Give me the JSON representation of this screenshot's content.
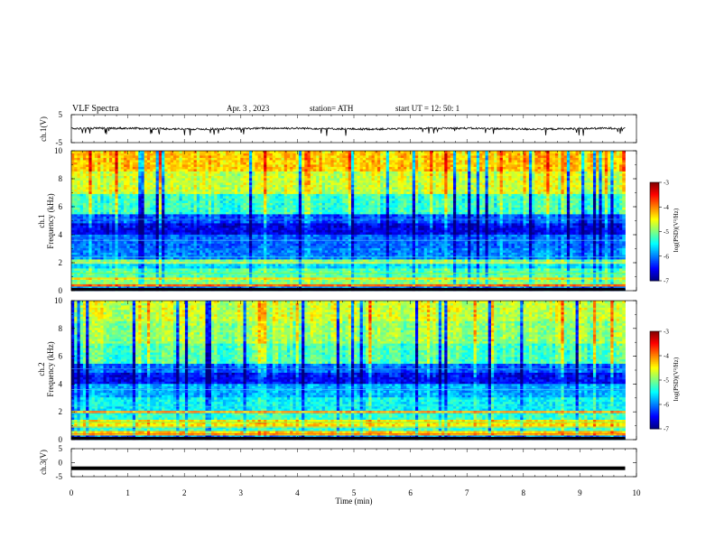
{
  "header": {
    "title": "VLF  Spectra",
    "date": "Apr. 3  , 2023",
    "station": "station= ATH",
    "start": "start  UT  =    12: 50: 1"
  },
  "chart_data": [
    {
      "type": "line",
      "panel": "ch1-waveform",
      "ylabel": "ch.1(V)",
      "ylim": [
        -5,
        5
      ],
      "yticks": [
        "5",
        "-5"
      ],
      "xlim": [
        0,
        10
      ],
      "description_series": "noisy waveform centred near 0 V with spikes down to about -2 V",
      "series_color": "#000000"
    },
    {
      "type": "heatmap",
      "panel": "ch1-spectrogram",
      "ylabel": "ch.1\nFrequency  (kHz)",
      "ylabel_line1": "ch.1",
      "ylabel_line2": "Frequency  (kHz)",
      "ylim": [
        0,
        10
      ],
      "yticks": [
        "0",
        "2",
        "4",
        "6",
        "8",
        "10"
      ],
      "xlim": [
        0,
        10
      ],
      "data_end_min": 9.8,
      "colorbar": {
        "label": "log(PSD)(V²/Hz)",
        "range": [
          -7,
          -3
        ],
        "ticks": [
          "-3",
          "-4",
          "-5",
          "-6",
          "-7"
        ]
      },
      "bands_khz_to_log_psd": [
        [
          0.0,
          0.3,
          -6.0
        ],
        [
          0.3,
          0.5,
          -4.0
        ],
        [
          0.5,
          0.8,
          -5.0
        ],
        [
          0.8,
          1.0,
          -4.5
        ],
        [
          1.0,
          1.6,
          -5.2
        ],
        [
          1.6,
          1.9,
          -5.6
        ],
        [
          1.9,
          2.3,
          -5.0
        ],
        [
          2.3,
          3.0,
          -6.0
        ],
        [
          3.0,
          4.0,
          -6.1
        ],
        [
          4.0,
          4.8,
          -6.6
        ],
        [
          4.8,
          5.5,
          -6.2
        ],
        [
          5.5,
          7.0,
          -5.3
        ],
        [
          7.0,
          8.5,
          -4.7
        ],
        [
          8.5,
          10.0,
          -4.3
        ]
      ]
    },
    {
      "type": "heatmap",
      "panel": "ch2-spectrogram",
      "ylabel": "ch.2\nFrequency  (kHz)",
      "ylabel_line1": "ch.2",
      "ylabel_line2": "Frequency  (kHz)",
      "ylim": [
        0,
        10
      ],
      "yticks": [
        "0",
        "2",
        "4",
        "6",
        "8",
        "10"
      ],
      "xlim": [
        0,
        10
      ],
      "data_end_min": 9.8,
      "colorbar": {
        "label": "log(PSD)(V²/Hz)",
        "range": [
          -7,
          -3
        ],
        "ticks": [
          "-3",
          "-4",
          "-5",
          "-6",
          "-7"
        ]
      },
      "bands_khz_to_log_psd": [
        [
          0.0,
          0.3,
          -6.0
        ],
        [
          0.3,
          0.6,
          -4.3
        ],
        [
          0.6,
          0.9,
          -5.3
        ],
        [
          0.9,
          1.5,
          -4.4
        ],
        [
          1.5,
          1.9,
          -5.3
        ],
        [
          1.9,
          2.1,
          -4.0
        ],
        [
          2.1,
          3.0,
          -5.5
        ],
        [
          3.0,
          4.0,
          -5.8
        ],
        [
          4.0,
          4.8,
          -6.5
        ],
        [
          4.8,
          5.5,
          -6.1
        ],
        [
          5.5,
          7.0,
          -5.2
        ],
        [
          7.0,
          8.5,
          -4.9
        ],
        [
          8.5,
          10.0,
          -4.7
        ]
      ]
    },
    {
      "type": "line",
      "panel": "ch3-waveform",
      "ylabel": "ch.3(V)",
      "ylim": [
        -5,
        5
      ],
      "yticks": [
        "5",
        "0",
        "-5"
      ],
      "xlim": [
        0,
        10
      ],
      "xlabel": "Time  (min)",
      "xticks": [
        "0",
        "1",
        "2",
        "3",
        "4",
        "5",
        "6",
        "7",
        "8",
        "9",
        "10"
      ],
      "constant_value": -2,
      "series_color": "#000000"
    }
  ]
}
